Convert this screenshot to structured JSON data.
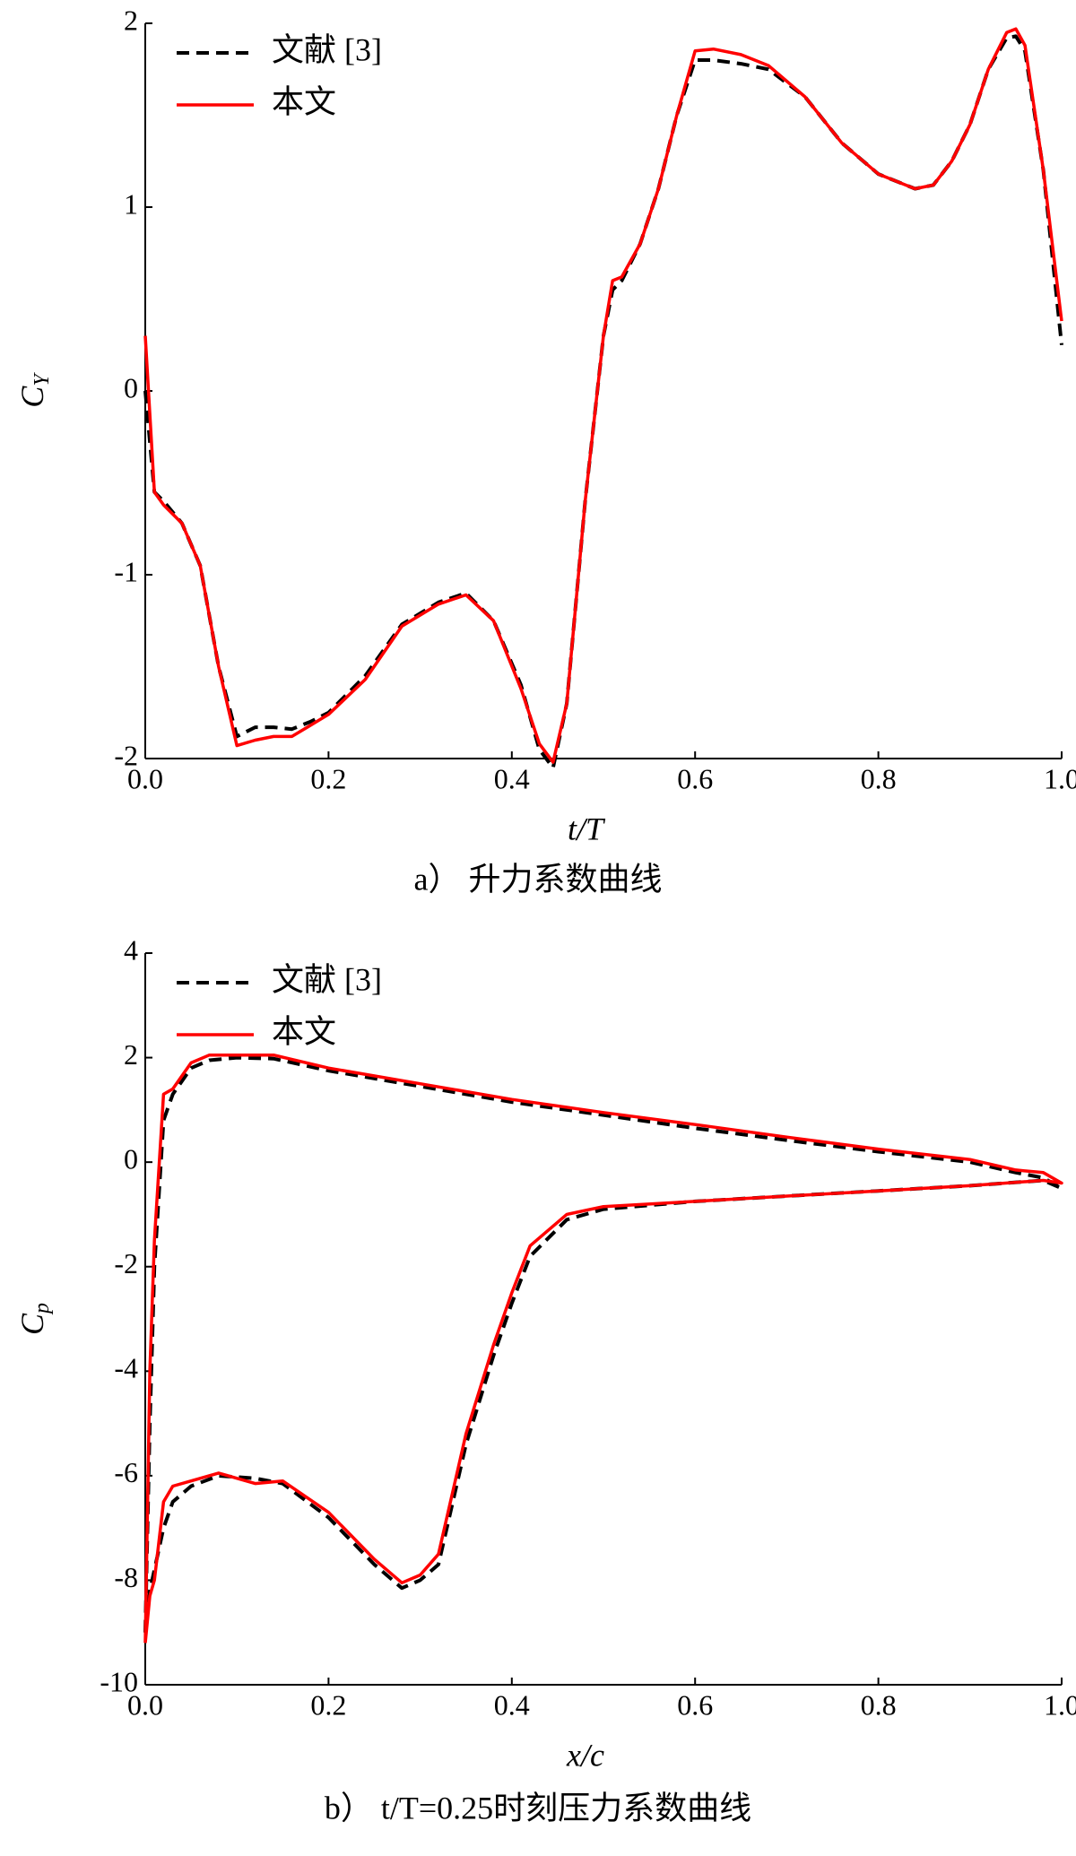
{
  "chart_data": [
    {
      "type": "line",
      "caption": "a） 升力系数曲线",
      "xlabel": "t/T",
      "ylabel": {
        "symbol": "C",
        "subscript": "Y"
      },
      "xlim": [
        0,
        1
      ],
      "ylim": [
        -2,
        2
      ],
      "xticks": [
        {
          "value": 0,
          "label": "0.0"
        },
        0.2,
        0.4,
        0.6,
        0.8,
        {
          "value": 1,
          "label": "1.0"
        }
      ],
      "yticks": [
        -2,
        -1,
        0,
        1,
        2
      ],
      "legend": "upper-left",
      "x": [
        0,
        0.01,
        0.02,
        0.04,
        0.06,
        0.08,
        0.1,
        0.12,
        0.14,
        0.16,
        0.18,
        0.2,
        0.24,
        0.28,
        0.32,
        0.35,
        0.38,
        0.41,
        0.43,
        0.445,
        0.46,
        0.48,
        0.5,
        0.51,
        0.52,
        0.54,
        0.56,
        0.58,
        0.6,
        0.62,
        0.65,
        0.68,
        0.72,
        0.76,
        0.8,
        0.84,
        0.86,
        0.88,
        0.9,
        0.92,
        0.94,
        0.95,
        0.96,
        0.98,
        1.0
      ],
      "series": [
        {
          "name": "文献 [3]",
          "color": "#000000",
          "dash": true,
          "values": [
            0.0,
            -0.55,
            -0.6,
            -0.72,
            -0.95,
            -1.5,
            -1.88,
            -1.83,
            -1.83,
            -1.84,
            -1.8,
            -1.75,
            -1.55,
            -1.27,
            -1.15,
            -1.1,
            -1.25,
            -1.6,
            -1.95,
            -2.05,
            -1.7,
            -0.6,
            0.3,
            0.55,
            0.6,
            0.8,
            1.1,
            1.5,
            1.8,
            1.8,
            1.78,
            1.75,
            1.6,
            1.35,
            1.18,
            1.1,
            1.12,
            1.25,
            1.45,
            1.75,
            1.92,
            1.93,
            1.85,
            1.2,
            0.25
          ]
        },
        {
          "name": "本文",
          "color": "#ff0000",
          "dash": false,
          "values": [
            0.3,
            -0.55,
            -0.62,
            -0.72,
            -0.95,
            -1.5,
            -1.93,
            -1.9,
            -1.88,
            -1.88,
            -1.82,
            -1.76,
            -1.57,
            -1.28,
            -1.16,
            -1.11,
            -1.25,
            -1.62,
            -1.92,
            -2.02,
            -1.7,
            -0.6,
            0.3,
            0.6,
            0.62,
            0.8,
            1.1,
            1.5,
            1.85,
            1.86,
            1.83,
            1.77,
            1.6,
            1.35,
            1.18,
            1.1,
            1.12,
            1.25,
            1.45,
            1.75,
            1.95,
            1.97,
            1.88,
            1.2,
            0.38
          ]
        }
      ]
    },
    {
      "type": "line",
      "caption": "b） t/T=0.25时刻压力系数曲线",
      "xlabel": "x/c",
      "ylabel": {
        "symbol": "C",
        "subscript": "p"
      },
      "xlim": [
        0,
        1
      ],
      "ylim": [
        -10,
        4
      ],
      "xticks": [
        {
          "value": 0,
          "label": "0.0"
        },
        0.2,
        0.4,
        0.6,
        0.8,
        {
          "value": 1,
          "label": "1.0"
        }
      ],
      "yticks": [
        -10,
        -8,
        -6,
        -4,
        -2,
        0,
        2,
        4
      ],
      "legend": "upper-left",
      "x": [
        0,
        0.005,
        0.01,
        0.02,
        0.03,
        0.05,
        0.07,
        0.1,
        0.14,
        0.2,
        0.3,
        0.4,
        0.5,
        0.6,
        0.7,
        0.8,
        0.9,
        0.95,
        0.98,
        1.0,
        0.98,
        0.9,
        0.8,
        0.7,
        0.6,
        0.5,
        0.46,
        0.42,
        0.4,
        0.38,
        0.35,
        0.32,
        0.3,
        0.28,
        0.25,
        0.2,
        0.15,
        0.12,
        0.08,
        0.05,
        0.03,
        0.02,
        0.01,
        0.005,
        0
      ],
      "series": [
        {
          "name": "文献 [3]",
          "color": "#000000",
          "dash": true,
          "values": [
            -9,
            -5,
            -2,
            0.8,
            1.3,
            1.8,
            1.95,
            2.0,
            1.98,
            1.75,
            1.45,
            1.15,
            0.9,
            0.65,
            0.42,
            0.2,
            0.0,
            -0.2,
            -0.3,
            -0.5,
            -0.35,
            -0.45,
            -0.55,
            -0.65,
            -0.75,
            -0.9,
            -1.1,
            -1.8,
            -2.7,
            -3.7,
            -5.4,
            -7.7,
            -8.0,
            -8.15,
            -7.7,
            -6.8,
            -6.15,
            -6.05,
            -6.0,
            -6.2,
            -6.5,
            -7.0,
            -7.8,
            -8.2,
            -9.0
          ]
        },
        {
          "name": "本文",
          "color": "#ff0000",
          "dash": false,
          "values": [
            -9.2,
            -4,
            -1.5,
            1.3,
            1.4,
            1.9,
            2.05,
            2.05,
            2.05,
            1.8,
            1.5,
            1.2,
            0.95,
            0.72,
            0.48,
            0.25,
            0.05,
            -0.15,
            -0.2,
            -0.4,
            -0.35,
            -0.45,
            -0.55,
            -0.65,
            -0.75,
            -0.85,
            -1.0,
            -1.6,
            -2.5,
            -3.5,
            -5.2,
            -7.5,
            -7.9,
            -8.05,
            -7.6,
            -6.7,
            -6.1,
            -6.15,
            -5.95,
            -6.1,
            -6.2,
            -6.5,
            -8.0,
            -8.3,
            -9.2
          ]
        }
      ]
    }
  ]
}
